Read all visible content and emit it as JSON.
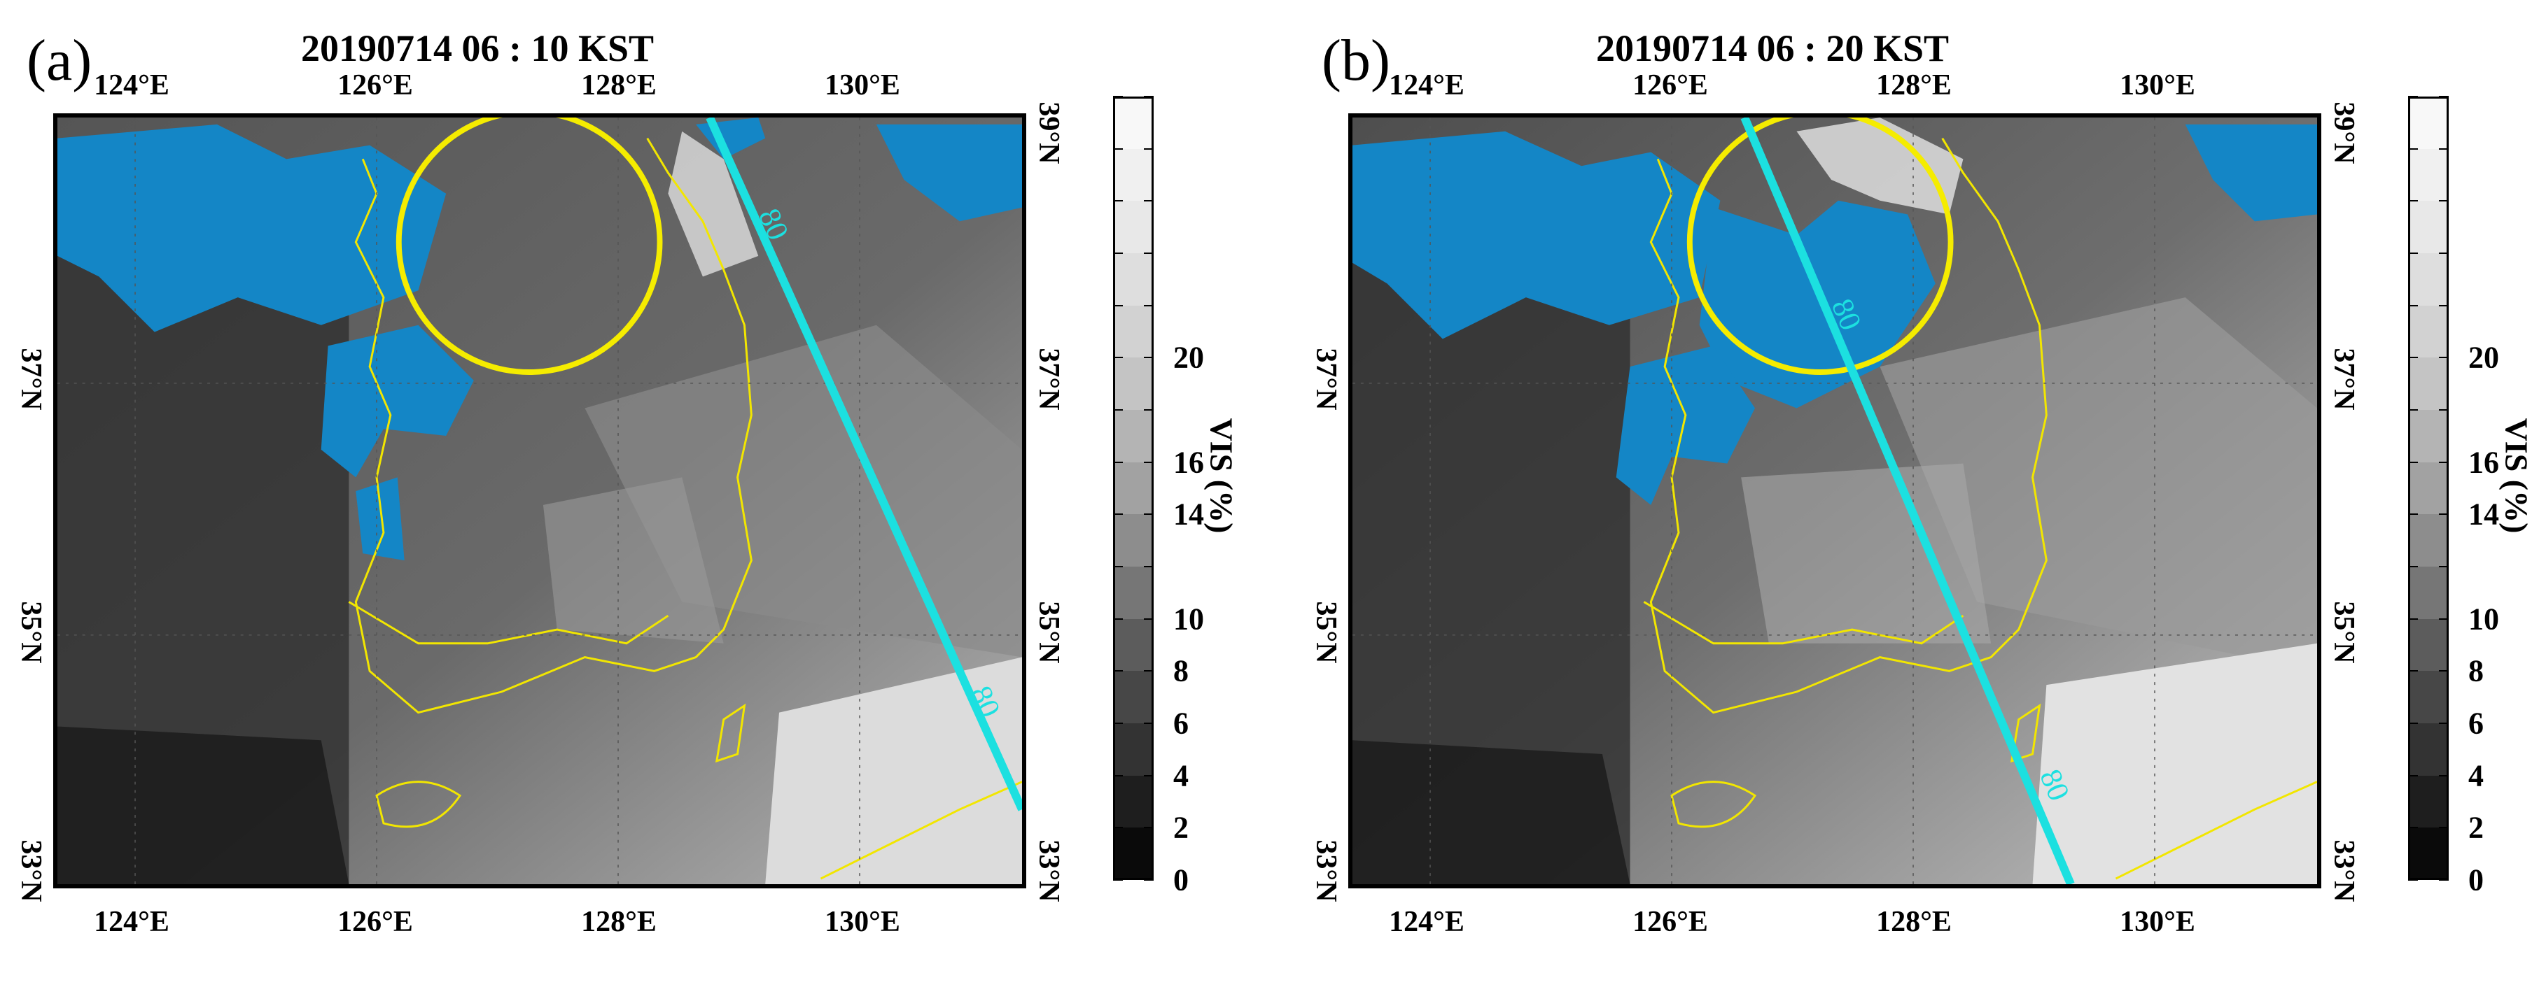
{
  "panels": [
    {
      "id": "a",
      "letter": "(a)",
      "title": "20190714 06 : 10 KST",
      "contour_labels": [
        "80",
        "80"
      ]
    },
    {
      "id": "b",
      "letter": "(b)",
      "title": "20190714 06 : 20 KST",
      "contour_labels": [
        "80",
        "80"
      ]
    }
  ],
  "axes": {
    "lon_top": [
      "124°E",
      "126°E",
      "128°E",
      "130°E"
    ],
    "lon_bottom": [
      "124°E",
      "126°E",
      "128°E",
      "130°E"
    ],
    "lat_left": [
      "33°N",
      "35°N",
      "37°N"
    ],
    "lat_right": [
      "33°N",
      "35°N",
      "37°N",
      "39°N"
    ],
    "lon_range": [
      123.6,
      131.4
    ],
    "lat_range": [
      33,
      39.1
    ]
  },
  "colorbar": {
    "title": "VIS (%)",
    "tick_labels": [
      "0",
      "2",
      "4",
      "6",
      "8",
      "10",
      "14",
      "16",
      "20"
    ],
    "levels": [
      0,
      2,
      4,
      6,
      8,
      10,
      12,
      14,
      16,
      18,
      20,
      22,
      24,
      26,
      28,
      30
    ],
    "colors": [
      "#0a0a0a",
      "#1e1e1e",
      "#333333",
      "#474747",
      "#5c5c5c",
      "#767676",
      "#8d8d8d",
      "#a2a2a2",
      "#b4b4b4",
      "#c4c4c4",
      "#d2d2d2",
      "#dedede",
      "#e8e8e8",
      "#f0f0f0",
      "#f8f8f8"
    ]
  },
  "colors": {
    "masked_blue": "#1486c6",
    "coastline": "#f2e600",
    "circle": "#f5ec00",
    "track": "#1ce0e0"
  }
}
